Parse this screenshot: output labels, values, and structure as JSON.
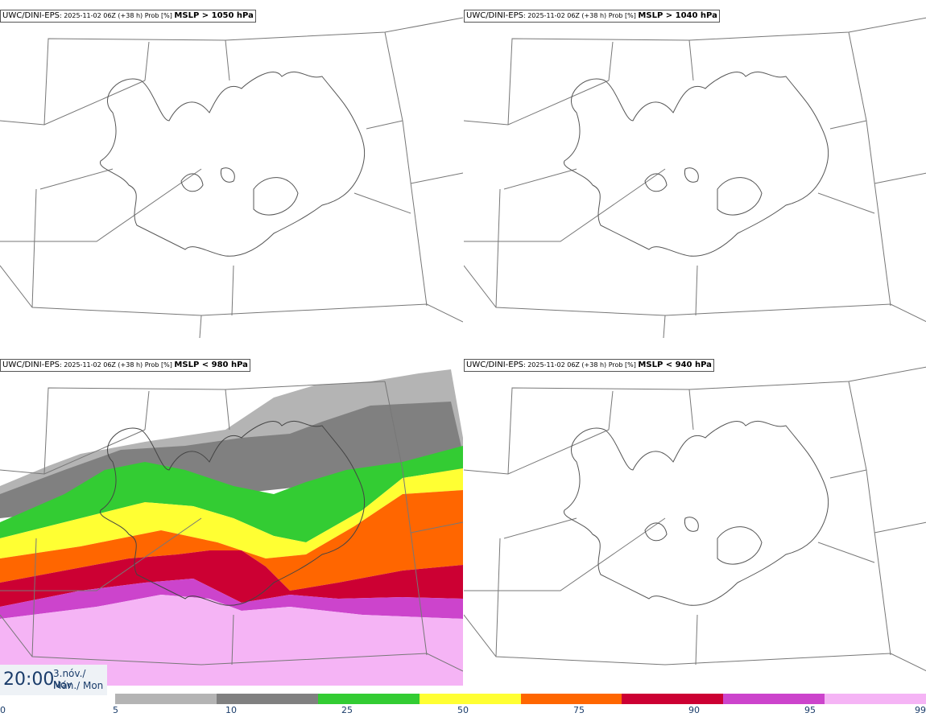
{
  "panels": [
    {
      "model": "UWC/DINI-EPS",
      "meta": ": 2025-11-02 06Z (+38 h) Prob [%] ",
      "threshold": "MSLP > 1050 hPa"
    },
    {
      "model": "UWC/DINI-EPS",
      "meta": ": 2025-11-02 06Z (+38 h) Prob [%] ",
      "threshold": "MSLP > 1040 hPa"
    },
    {
      "model": "UWC/DINI-EPS",
      "meta": ": 2025-11-02 06Z (+38 h) Prob [%] ",
      "threshold": "MSLP < 980 hPa"
    },
    {
      "model": "UWC/DINI-EPS",
      "meta": ": 2025-11-02 06Z (+38 h) Prob [%] ",
      "threshold": "MSLP < 940 hPa"
    }
  ],
  "valid_time": {
    "time": "20:00",
    "date_line1": "3.nóv./ Nov",
    "date_line2": "Mán./ Mon"
  },
  "legend": {
    "ticks": [
      "0",
      "5",
      "10",
      "25",
      "50",
      "75",
      "90",
      "95",
      "99"
    ],
    "colors": [
      "#b4b4b4",
      "#808080",
      "#33cc33",
      "#ffff33",
      "#ff6600",
      "#cc0033",
      "#cc44cc",
      "#f5b4f5"
    ]
  }
}
